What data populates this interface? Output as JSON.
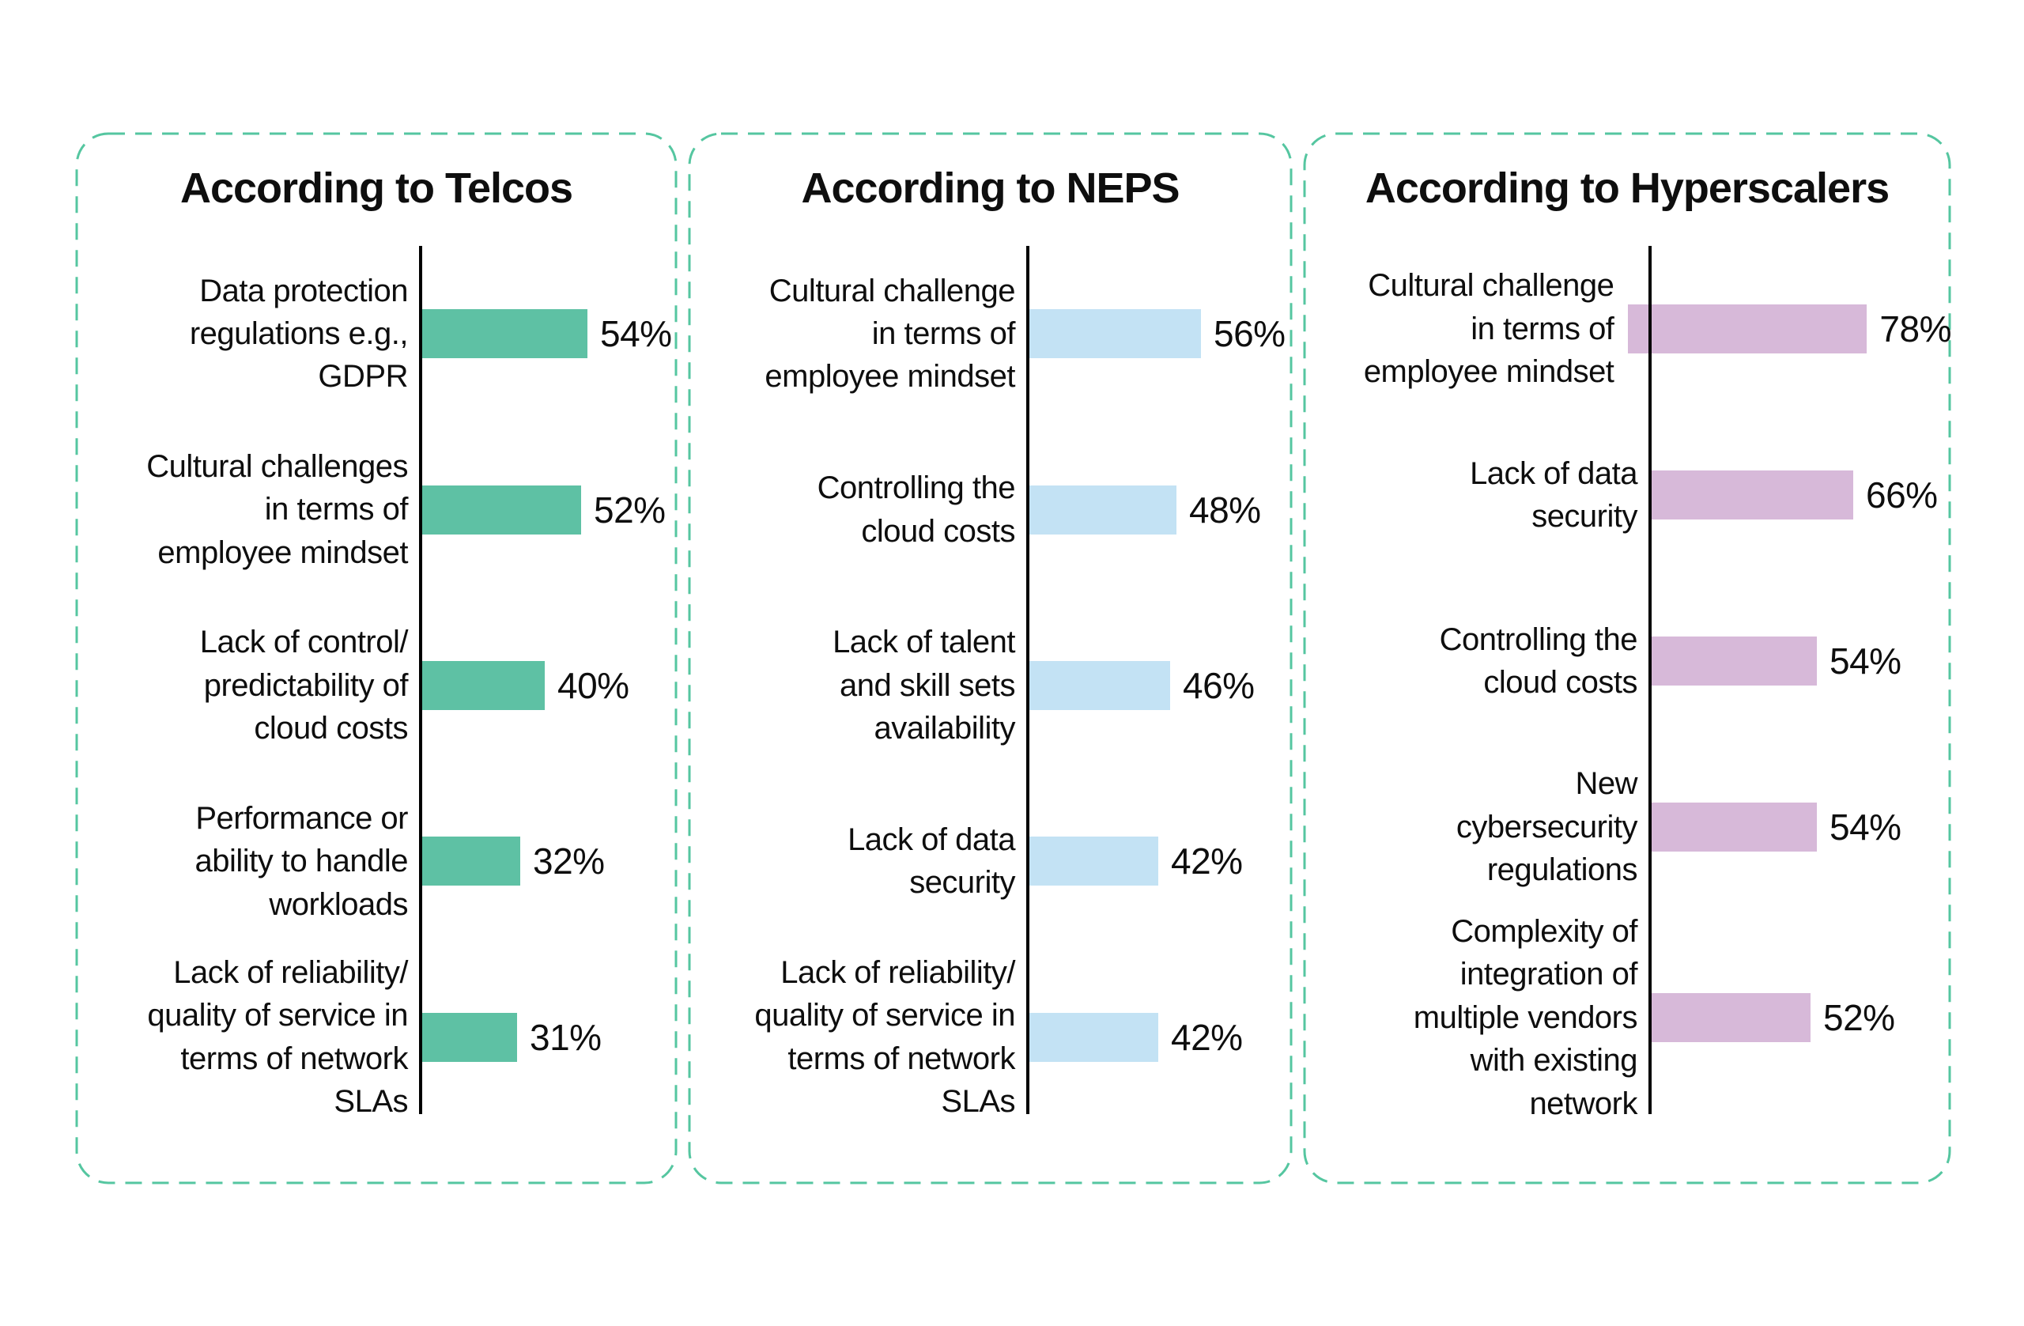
{
  "colors": {
    "border_dash": "#55c6a0",
    "axis": "#000000",
    "telcos_bar": "#5ec1a4",
    "neps_bar": "#c3e2f4",
    "hyperscalers_bar": "#d7b9d9"
  },
  "panels": [
    {
      "title": "According to Telcos",
      "bar_color": "#5ec1a4",
      "items": [
        {
          "label": "Data protection\nregulations e.g.,\nGDPR",
          "value": 54,
          "value_label": "54%"
        },
        {
          "label": "Cultural challenges\nin terms of\nemployee mindset",
          "value": 52,
          "value_label": "52%"
        },
        {
          "label": "Lack of control/\npredictability of\ncloud costs",
          "value": 40,
          "value_label": "40%"
        },
        {
          "label": "Performance or\nability to handle\nworkloads",
          "value": 32,
          "value_label": "32%"
        },
        {
          "label": "Lack of reliability/\nquality of service in\nterms of network\nSLAs",
          "value": 31,
          "value_label": "31%"
        }
      ]
    },
    {
      "title": "According to NEPS",
      "bar_color": "#c3e2f4",
      "items": [
        {
          "label": "Cultural challenge\nin terms of\nemployee mindset",
          "value": 56,
          "value_label": "56%"
        },
        {
          "label": "Controlling the\ncloud costs",
          "value": 48,
          "value_label": "48%"
        },
        {
          "label": "Lack of talent\nand skill sets\navailability",
          "value": 46,
          "value_label": "46%"
        },
        {
          "label": "Lack of data\nsecurity",
          "value": 42,
          "value_label": "42%"
        },
        {
          "label": "Lack of reliability/\nquality of service in\nterms of network\nSLAs",
          "value": 42,
          "value_label": "42%"
        }
      ]
    },
    {
      "title": "According to Hyperscalers",
      "bar_color": "#d7b9d9",
      "items": [
        {
          "label": "Cultural challenge\nin terms of\nemployee mindset",
          "value": 78,
          "value_label": "78%"
        },
        {
          "label": "Lack of data\nsecurity",
          "value": 66,
          "value_label": "66%"
        },
        {
          "label": "Controlling the\ncloud costs",
          "value": 54,
          "value_label": "54%"
        },
        {
          "label": "New\ncybersecurity\nregulations",
          "value": 54,
          "value_label": "54%"
        },
        {
          "label": "Complexity of\nintegration of\nmultiple vendors\nwith existing\nnetwork",
          "value": 52,
          "value_label": "52%"
        }
      ]
    }
  ],
  "chart_data": [
    {
      "type": "bar",
      "orientation": "horizontal",
      "title": "According to Telcos",
      "categories": [
        "Data protection regulations e.g., GDPR",
        "Cultural challenges in terms of employee mindset",
        "Lack of control/predictability of cloud costs",
        "Performance or ability to handle workloads",
        "Lack of reliability/quality of service in terms of network SLAs"
      ],
      "values": [
        54,
        52,
        40,
        32,
        31
      ],
      "unit": "%",
      "bar_color": "#5ec1a4",
      "xlim": [
        0,
        100
      ],
      "grid": false,
      "legend": false,
      "data_labels": [
        "54%",
        "52%",
        "40%",
        "32%",
        "31%"
      ]
    },
    {
      "type": "bar",
      "orientation": "horizontal",
      "title": "According to NEPS",
      "categories": [
        "Cultural challenge in terms of employee mindset",
        "Controlling the cloud costs",
        "Lack of talent and skill sets availability",
        "Lack of data security",
        "Lack of reliability/quality of service in terms of network SLAs"
      ],
      "values": [
        56,
        48,
        46,
        42,
        42
      ],
      "unit": "%",
      "bar_color": "#c3e2f4",
      "xlim": [
        0,
        100
      ],
      "grid": false,
      "legend": false,
      "data_labels": [
        "56%",
        "48%",
        "46%",
        "42%",
        "42%"
      ]
    },
    {
      "type": "bar",
      "orientation": "horizontal",
      "title": "According to Hyperscalers",
      "categories": [
        "Cultural challenge in terms of employee mindset",
        "Lack of data security",
        "Controlling the cloud costs",
        "New cybersecurity regulations",
        "Complexity of integration of multiple vendors with existing network"
      ],
      "values": [
        78,
        66,
        54,
        54,
        52
      ],
      "unit": "%",
      "bar_color": "#d7b9d9",
      "xlim": [
        0,
        100
      ],
      "grid": false,
      "legend": false,
      "data_labels": [
        "78%",
        "66%",
        "54%",
        "54%",
        "52%"
      ]
    }
  ]
}
